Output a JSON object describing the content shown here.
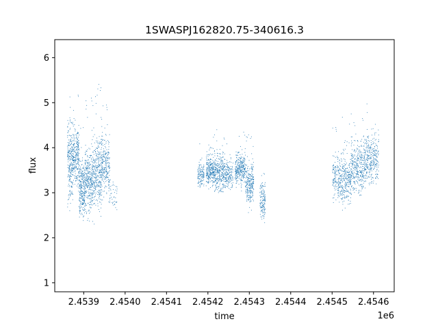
{
  "chart_data": {
    "type": "scatter",
    "title": "1SWASPJ162820.75-340616.3",
    "xlabel": "time",
    "ylabel": "flux",
    "x_offset_label": "1e6",
    "xlim": [
      2453830,
      2454650
    ],
    "ylim": [
      0.8,
      6.4
    ],
    "x_ticks": [
      2453900,
      2454000,
      2454100,
      2454200,
      2454300,
      2454400,
      2454500,
      2454600
    ],
    "x_tick_labels": [
      "2.4539",
      "2.4540",
      "2.4541",
      "2.4542",
      "2.4543",
      "2.4544",
      "2.4545",
      "2.4546"
    ],
    "y_ticks": [
      1,
      2,
      3,
      4,
      5,
      6
    ],
    "y_tick_labels": [
      "1",
      "2",
      "3",
      "4",
      "5",
      "6"
    ],
    "grid": false,
    "marker_color": "#1f77b4",
    "series": [
      {
        "segments": [
          {
            "x": [
              2453860,
              2453874
            ],
            "y_mean": 3.7,
            "y_spread": 0.75,
            "points": 260
          },
          {
            "x": [
              2453874,
              2453888
            ],
            "y_mean": 3.8,
            "y_spread": 0.6,
            "points": 230
          },
          {
            "x": [
              2453888,
              2453902
            ],
            "y_mean": 3.1,
            "y_spread": 0.55,
            "points": 260
          },
          {
            "x": [
              2453902,
              2453916
            ],
            "y_mean": 3.3,
            "y_spread": 0.65,
            "points": 240
          },
          {
            "x": [
              2453916,
              2453930
            ],
            "y_mean": 3.4,
            "y_spread": 0.65,
            "points": 220
          },
          {
            "x": [
              2453930,
              2453945
            ],
            "y_mean": 3.5,
            "y_spread": 0.7,
            "points": 240
          },
          {
            "x": [
              2453945,
              2453962
            ],
            "y_mean": 3.6,
            "y_spread": 0.55,
            "points": 200
          },
          {
            "x": [
              2453962,
              2453980
            ],
            "y_mean": 3.0,
            "y_spread": 0.35,
            "points": 40
          },
          {
            "x": [
              2454175,
              2454190
            ],
            "y_mean": 3.4,
            "y_spread": 0.25,
            "points": 130
          },
          {
            "x": [
              2454195,
              2454215
            ],
            "y_mean": 3.5,
            "y_spread": 0.3,
            "points": 260
          },
          {
            "x": [
              2454215,
              2454240
            ],
            "y_mean": 3.45,
            "y_spread": 0.35,
            "points": 300
          },
          {
            "x": [
              2454240,
              2454260
            ],
            "y_mean": 3.4,
            "y_spread": 0.3,
            "points": 160
          },
          {
            "x": [
              2454265,
              2454290
            ],
            "y_mean": 3.55,
            "y_spread": 0.3,
            "points": 300
          },
          {
            "x": [
              2454290,
              2454310
            ],
            "y_mean": 3.2,
            "y_spread": 0.4,
            "points": 260
          },
          {
            "x": [
              2454325,
              2454338
            ],
            "y_mean": 2.85,
            "y_spread": 0.35,
            "points": 140
          },
          {
            "x": [
              2454500,
              2454515
            ],
            "y_mean": 3.35,
            "y_spread": 0.45,
            "points": 120
          },
          {
            "x": [
              2454515,
              2454545
            ],
            "y_mean": 3.3,
            "y_spread": 0.5,
            "points": 320
          },
          {
            "x": [
              2454545,
              2454575
            ],
            "y_mean": 3.55,
            "y_spread": 0.5,
            "points": 320
          },
          {
            "x": [
              2454575,
              2454612
            ],
            "y_mean": 3.75,
            "y_spread": 0.45,
            "points": 360
          }
        ]
      }
    ]
  }
}
